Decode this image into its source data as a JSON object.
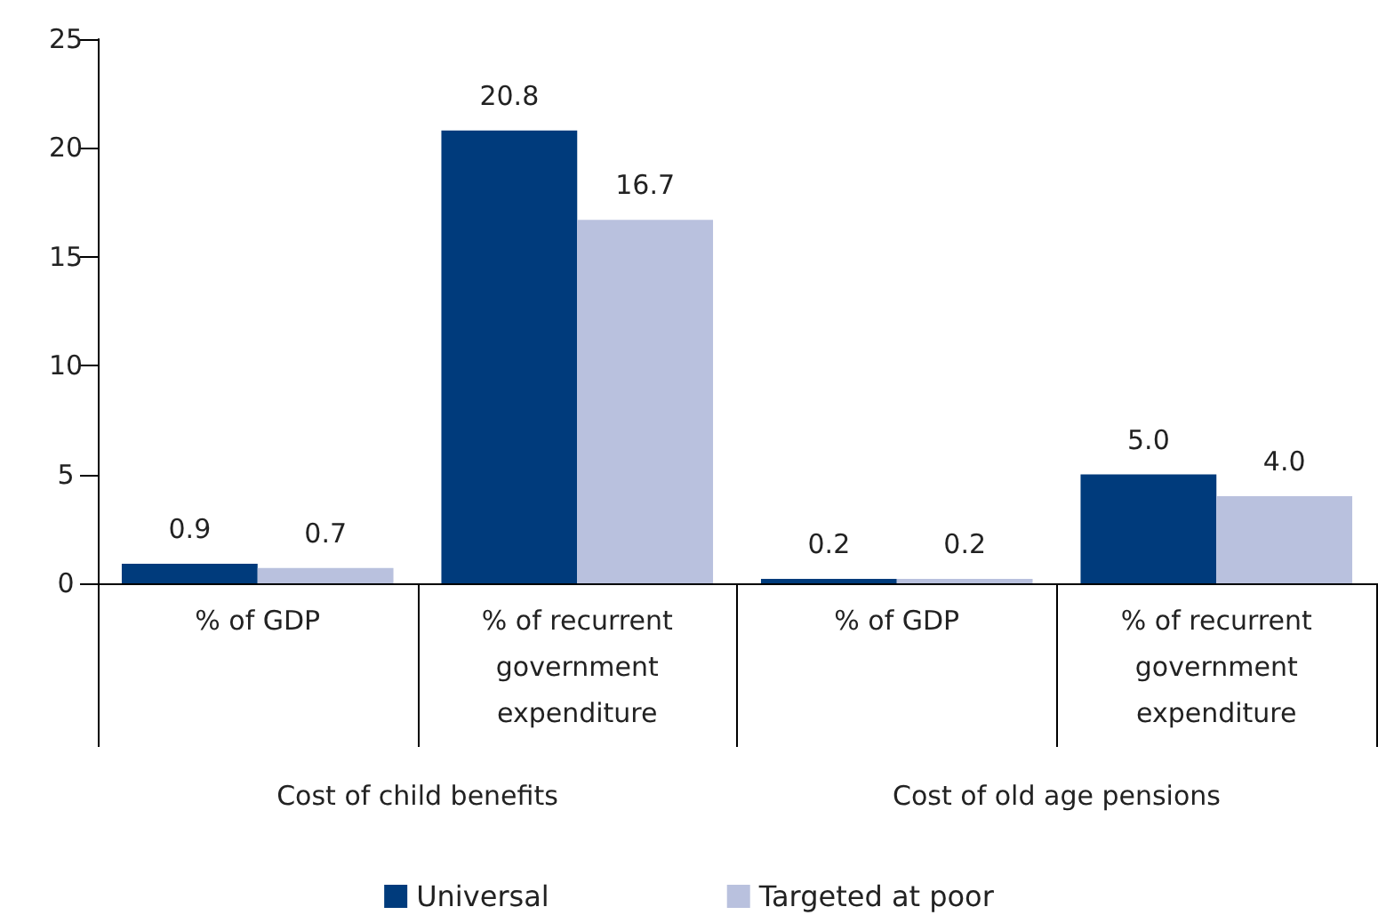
{
  "chart_data": {
    "type": "bar",
    "categories": [
      "% of GDP",
      "% of recurrent government expenditure",
      "% of GDP",
      "% of recurrent government expenditure"
    ],
    "annotations": [
      "Cost of child benefits",
      "Cost of old age pensions"
    ],
    "series": [
      {
        "name": "Universal",
        "color": "#003b7c",
        "values": [
          0.9,
          20.8,
          0.2,
          5.0
        ],
        "value_labels": [
          "0.9",
          "20.8",
          "0.2",
          "5.0"
        ]
      },
      {
        "name": "Targeted at poor",
        "color": "#b9c1de",
        "values": [
          0.7,
          16.7,
          0.2,
          4.0
        ],
        "value_labels": [
          "0.7",
          "16.7",
          "0.2",
          "4.0"
        ]
      }
    ],
    "ylim": [
      0,
      25
    ],
    "yticks": [
      0,
      5,
      10,
      15,
      20,
      25
    ],
    "grid": false,
    "legend": "bottom"
  }
}
